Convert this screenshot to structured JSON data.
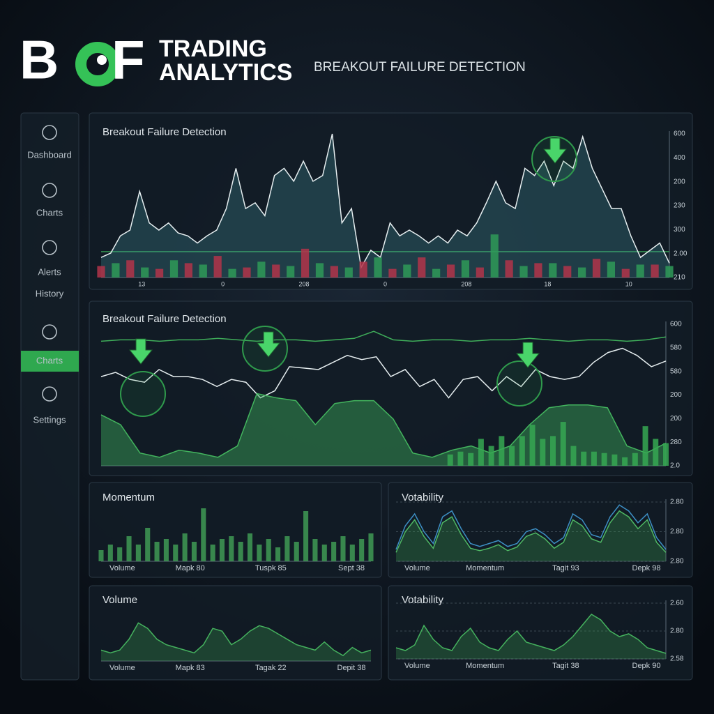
{
  "header": {
    "logo_left": "B",
    "logo_right": "F",
    "title_line1": "TRADING",
    "title_line2": "ANALYTICS",
    "subtitle": "BREAKOUT FAILURE DETECTION"
  },
  "sidebar": {
    "items": [
      "Dashboard",
      "Charts",
      "Alerts",
      "History",
      "Charts",
      "Settings"
    ],
    "active_index": 4
  },
  "panels": [
    {
      "title": "Breakout Failure Detection",
      "ylim": [
        0,
        100
      ],
      "y_labels": [
        "600",
        "400",
        "200",
        "230",
        "300",
        "2.00",
        "210"
      ],
      "x_labels": [
        "13",
        "0",
        "208",
        "0",
        "208",
        "18",
        "10"
      ],
      "threshold": 18,
      "series": [
        {
          "type": "area",
          "color": "#e6eef0",
          "fill": "rgba(70,150,160,0.28)",
          "values": [
            14,
            17,
            29,
            33,
            60,
            38,
            33,
            38,
            31,
            29,
            24,
            29,
            33,
            48,
            76,
            48,
            52,
            43,
            71,
            76,
            67,
            81,
            67,
            71,
            100,
            38,
            48,
            7,
            19,
            14,
            38,
            29,
            33,
            29,
            24,
            29,
            24,
            33,
            29,
            38,
            52,
            67,
            52,
            48,
            76,
            71,
            81,
            64,
            81,
            76,
            98,
            76,
            62,
            48,
            48,
            29,
            14,
            19,
            24,
            10
          ]
        },
        {
          "type": "bar",
          "color": "#b3344a",
          "values": [
            8,
            null,
            12,
            null,
            6,
            null,
            10,
            null,
            15,
            null,
            7,
            null,
            9,
            null,
            20,
            null,
            8,
            null,
            11,
            null,
            6,
            null,
            14,
            null,
            9,
            null,
            7,
            null,
            12,
            null,
            10,
            null,
            8,
            null,
            13,
            null,
            6,
            null,
            9,
            null
          ]
        },
        {
          "type": "bar",
          "color": "#2f9a58",
          "values": [
            null,
            10,
            null,
            7,
            null,
            12,
            null,
            9,
            null,
            6,
            null,
            11,
            null,
            8,
            null,
            10,
            null,
            7,
            null,
            14,
            null,
            9,
            null,
            6,
            null,
            12,
            null,
            30,
            null,
            8,
            null,
            10,
            null,
            7,
            null,
            11,
            null,
            9,
            null,
            8
          ]
        }
      ]
    },
    {
      "title": "Breakout Failure Detection",
      "ylim": [
        0,
        100
      ],
      "y_labels": [
        "600",
        "580",
        "580",
        "200",
        "200",
        "280",
        "2.0"
      ],
      "x_labels": [],
      "series": [
        {
          "type": "line",
          "color": "#3fae5a",
          "values": [
            88,
            89,
            89,
            88,
            89,
            89,
            90,
            89,
            88,
            89,
            89,
            88,
            89,
            90,
            95,
            89,
            88,
            89,
            89,
            88,
            89,
            89,
            90,
            89,
            88,
            89,
            89,
            88,
            89,
            91
          ]
        },
        {
          "type": "line",
          "color": "#e6eef0",
          "values": [
            63,
            66,
            61,
            59,
            68,
            63,
            63,
            61,
            56,
            61,
            59,
            48,
            53,
            70,
            69,
            68,
            73,
            78,
            75,
            77,
            63,
            68,
            56,
            61,
            48,
            61,
            63,
            53,
            63,
            56,
            68,
            63,
            61,
            63,
            73,
            80,
            83,
            78,
            70,
            74
          ]
        },
        {
          "type": "area",
          "color": "#43b55e",
          "fill": "rgba(60,170,90,0.45)",
          "values": [
            36,
            29,
            9,
            6,
            11,
            9,
            6,
            14,
            51,
            48,
            46,
            29,
            44,
            46,
            46,
            33,
            9,
            6,
            11,
            14,
            9,
            14,
            29,
            41,
            43,
            43,
            41,
            14,
            9,
            16
          ]
        },
        {
          "type": "bar",
          "color": "#36a852",
          "values": [
            null,
            null,
            null,
            null,
            null,
            null,
            null,
            null,
            null,
            null,
            null,
            null,
            null,
            null,
            null,
            null,
            null,
            null,
            null,
            null,
            null,
            null,
            null,
            null,
            null,
            null,
            null,
            null,
            null,
            null,
            null,
            null,
            null,
            null,
            8,
            10,
            9,
            19,
            14,
            21,
            14,
            21,
            29,
            19,
            21,
            31,
            14,
            10,
            10,
            9,
            8,
            6,
            9,
            28,
            19,
            16
          ]
        }
      ]
    },
    {
      "title": "Momentum",
      "ylim": [
        0,
        100
      ],
      "y_labels": [],
      "x_labels": [
        "Volume",
        "Mapk 80",
        "Tuspk 85",
        "Sept 38"
      ],
      "series": [
        {
          "type": "bar",
          "color": "#3f9a55",
          "values": [
            20,
            30,
            25,
            45,
            30,
            60,
            35,
            40,
            30,
            50,
            35,
            95,
            30,
            40,
            45,
            35,
            50,
            30,
            40,
            25,
            45,
            35,
            90,
            40,
            30,
            35,
            45,
            30,
            40,
            50
          ]
        }
      ]
    },
    {
      "title": "Votability",
      "ylim": [
        0,
        100
      ],
      "y_labels": [
        "2.80",
        "2.80",
        "2.80"
      ],
      "x_labels": [
        "Volume",
        "Momentum",
        "Tagit 93",
        "Depk 98"
      ],
      "series": [
        {
          "type": "line",
          "color": "#3d8fc4",
          "values": [
            20,
            60,
            80,
            50,
            30,
            75,
            85,
            55,
            30,
            25,
            30,
            35,
            25,
            30,
            50,
            55,
            45,
            30,
            40,
            80,
            70,
            45,
            40,
            75,
            95,
            85,
            65,
            80,
            40,
            20
          ]
        },
        {
          "type": "area",
          "color": "#4fb864",
          "fill": "rgba(60,160,80,0.3)",
          "values": [
            15,
            50,
            70,
            42,
            22,
            65,
            75,
            45,
            22,
            18,
            22,
            28,
            18,
            24,
            42,
            48,
            38,
            22,
            32,
            70,
            60,
            38,
            32,
            65,
            85,
            75,
            55,
            70,
            32,
            15
          ]
        }
      ]
    },
    {
      "title": "Volume",
      "ylim": [
        0,
        100
      ],
      "y_labels": [],
      "x_labels": [
        "Volume",
        "Mapk 83",
        "Tagak 22",
        "Depit 38"
      ],
      "series": [
        {
          "type": "area",
          "color": "#45b25e",
          "fill": "rgba(60,160,80,0.3)",
          "values": [
            20,
            15,
            20,
            40,
            70,
            60,
            40,
            30,
            25,
            20,
            15,
            30,
            60,
            55,
            30,
            40,
            55,
            65,
            60,
            50,
            40,
            30,
            25,
            20,
            35,
            20,
            10,
            25,
            15,
            20
          ]
        }
      ]
    },
    {
      "title": "Votability",
      "ylim": [
        0,
        100
      ],
      "y_labels": [
        "2.60",
        "2.80",
        "2.58"
      ],
      "x_labels": [
        "Volume",
        "Momentum",
        "Tagit 38",
        "Depk 90"
      ],
      "series": [
        {
          "type": "area",
          "color": "#45b25e",
          "fill": "rgba(60,160,80,0.3)",
          "values": [
            20,
            15,
            25,
            60,
            35,
            20,
            15,
            40,
            55,
            30,
            20,
            15,
            35,
            50,
            30,
            25,
            20,
            15,
            25,
            40,
            60,
            80,
            70,
            50,
            40,
            45,
            35,
            20,
            15,
            10
          ]
        }
      ]
    }
  ]
}
